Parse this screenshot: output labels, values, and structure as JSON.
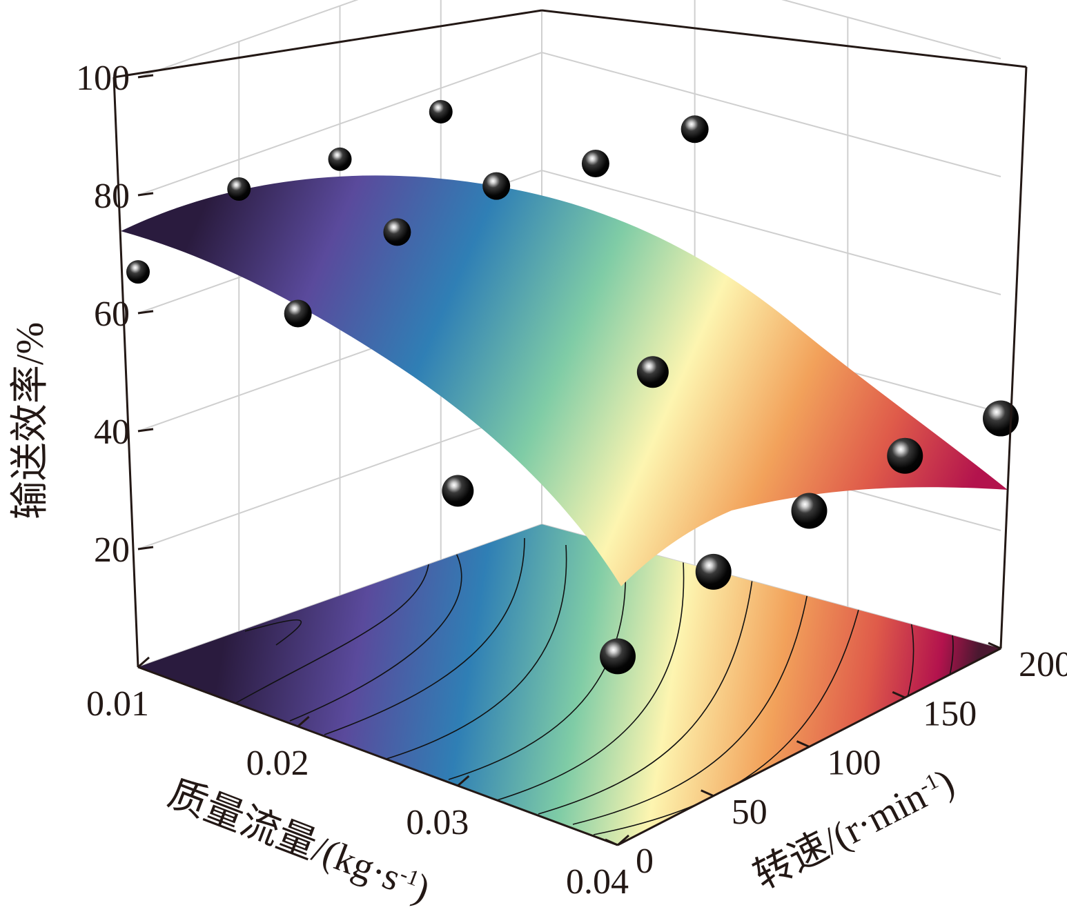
{
  "chart_data": {
    "type": "surface3d",
    "title": "",
    "z_axis": {
      "label": "输送效率/%",
      "ticks": [
        20,
        40,
        60,
        80,
        100
      ],
      "range": [
        0,
        100
      ]
    },
    "x_axis": {
      "label": "质量流量/(kg·s",
      "label_sup": "-1",
      "label_end": ")",
      "ticks": [
        "0.01",
        "0.02",
        "0.03",
        "0.04"
      ],
      "range": [
        0.01,
        0.04
      ]
    },
    "y_axis": {
      "label": "转速/(r·min",
      "label_sup": "-1",
      "label_end": ")",
      "ticks": [
        "0",
        "50",
        "100",
        "150",
        "200"
      ],
      "range": [
        0,
        200
      ]
    },
    "grid": true,
    "surface_color_scale": [
      "#2a1b3e",
      "#5a4a9c",
      "#2f7fb5",
      "#7fcca6",
      "#fdf5b0",
      "#f2a25b",
      "#df5b4a",
      "#b3134d"
    ],
    "contour_projection": true,
    "measured_points": [
      {
        "mass_flow": 0.01,
        "speed": 0,
        "efficiency": 67
      },
      {
        "mass_flow": 0.01,
        "speed": 50,
        "efficiency": 75
      },
      {
        "mass_flow": 0.01,
        "speed": 100,
        "efficiency": 74
      },
      {
        "mass_flow": 0.01,
        "speed": 150,
        "efficiency": 76
      },
      {
        "mass_flow": 0.02,
        "speed": 0,
        "efficiency": 70
      },
      {
        "mass_flow": 0.02,
        "speed": 50,
        "efficiency": 77
      },
      {
        "mass_flow": 0.02,
        "speed": 100,
        "efficiency": 78
      },
      {
        "mass_flow": 0.02,
        "speed": 150,
        "efficiency": 75
      },
      {
        "mass_flow": 0.02,
        "speed": 200,
        "efficiency": 74
      },
      {
        "mass_flow": 0.03,
        "speed": 0,
        "efficiency": 50
      },
      {
        "mass_flow": 0.03,
        "speed": 100,
        "efficiency": 55
      },
      {
        "mass_flow": 0.04,
        "speed": 0,
        "efficiency": 32
      },
      {
        "mass_flow": 0.04,
        "speed": 50,
        "efficiency": 38
      },
      {
        "mass_flow": 0.04,
        "speed": 100,
        "efficiency": 40
      },
      {
        "mass_flow": 0.04,
        "speed": 150,
        "efficiency": 41
      },
      {
        "mass_flow": 0.04,
        "speed": 200,
        "efficiency": 39
      }
    ]
  }
}
